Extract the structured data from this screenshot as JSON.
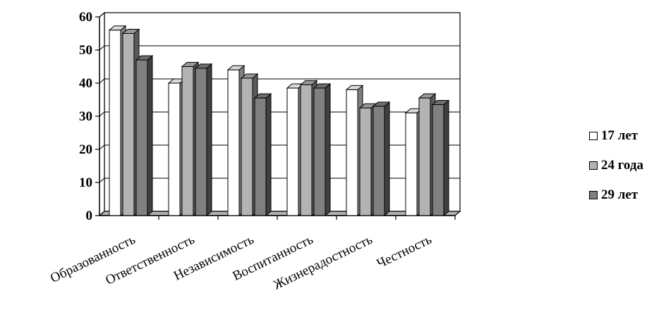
{
  "chart_data": {
    "type": "bar",
    "three_d": true,
    "categories": [
      "Образованность",
      "Ответственность",
      "Независимость",
      "Воспитанность",
      "Жизнерадостность",
      "Честность"
    ],
    "series": [
      {
        "name": "17 лет",
        "values": [
          56,
          40,
          44,
          38.5,
          38,
          31
        ],
        "color": "#ffffff"
      },
      {
        "name": "24 года",
        "values": [
          55,
          45,
          41.5,
          39.5,
          32.5,
          35.5
        ],
        "color": "#b3b3b3"
      },
      {
        "name": "29 лет",
        "values": [
          47,
          44.5,
          35.5,
          38.5,
          33,
          33.5
        ],
        "color": "#808080"
      }
    ],
    "ylim": [
      0,
      60
    ],
    "yticks": [
      0,
      10,
      20,
      30,
      40,
      50,
      60
    ],
    "grid": true,
    "legend_position": "right"
  }
}
